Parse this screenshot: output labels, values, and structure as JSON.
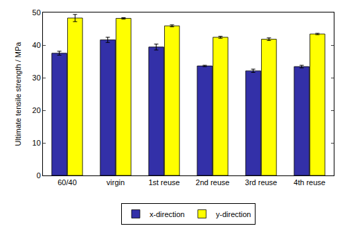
{
  "chart_data": {
    "type": "bar",
    "y_label": "Ultimate tensile strength / MPa",
    "categories": [
      "60/40",
      "virgin",
      "1st reuse",
      "2nd reuse",
      "3rd reuse",
      "4th reuse"
    ],
    "series": [
      {
        "name": "x-direction",
        "color": "#3330a8",
        "values": [
          37.5,
          41.6,
          39.4,
          33.6,
          32.1,
          33.4
        ],
        "errors": [
          0.6,
          0.8,
          0.9,
          0.2,
          0.5,
          0.4
        ]
      },
      {
        "name": "y-direction",
        "color": "#ffff00",
        "values": [
          48.3,
          48.2,
          45.9,
          42.4,
          41.8,
          43.4
        ],
        "errors": [
          1.1,
          0.2,
          0.3,
          0.3,
          0.4,
          0.2
        ]
      }
    ],
    "ylim": [
      0,
      50
    ],
    "yticks": [
      0,
      10,
      20,
      30,
      40,
      50
    ],
    "grid": false,
    "legend": "bottom"
  }
}
